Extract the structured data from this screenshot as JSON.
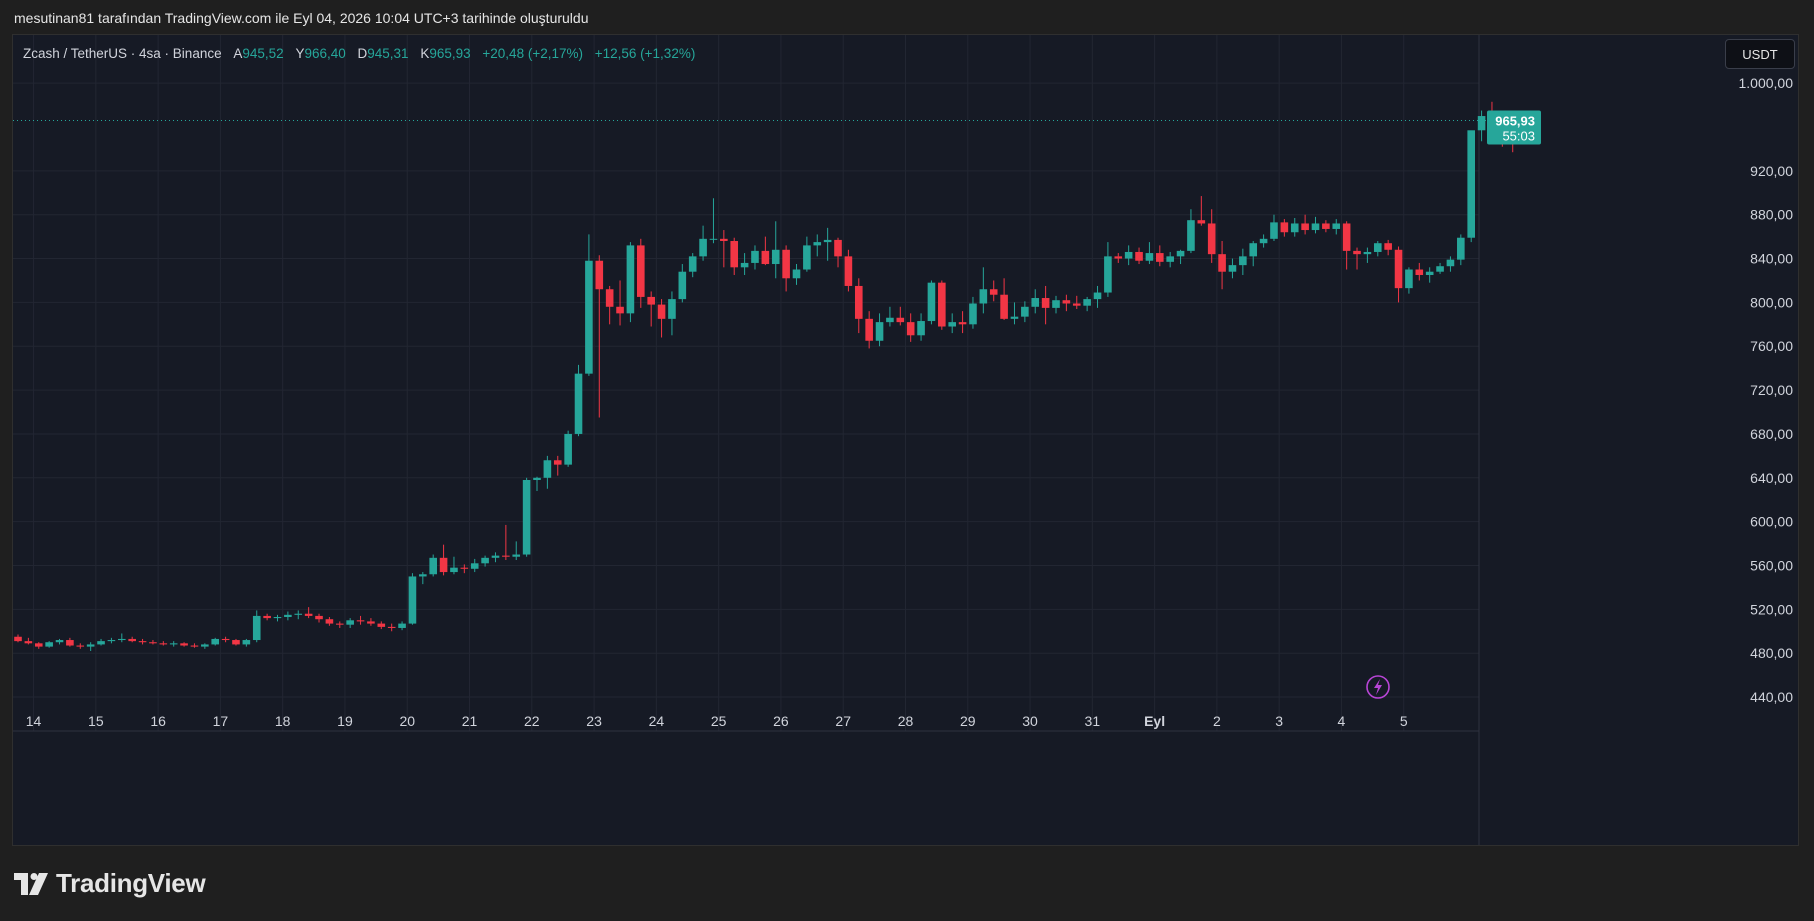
{
  "header": {
    "snapshot_text": "mesutinan81 tarafından TradingView.com ile Eyl 04, 2026 10:04 UTC+3 tarihinde oluşturuldu"
  },
  "legend": {
    "symbol": "Zcash / TetherUS · 4sa · Binance",
    "open_label": "A",
    "open": "945,52",
    "high_label": "Y",
    "high": "966,40",
    "low_label": "D",
    "low": "945,31",
    "close_label": "K",
    "close": "965,93",
    "change": "+20,48 (+2,17%)",
    "change2": "+12,56 (+1,32%)"
  },
  "currency_button": "USDT",
  "price_badge": {
    "price": "965,93",
    "countdown": "55:03"
  },
  "footer": {
    "brand": "TradingView"
  },
  "colors": {
    "up": "#26a69a",
    "down": "#f23645",
    "background": "#161a25",
    "grid": "#222632",
    "axis_text": "#d1d4dc",
    "lightning": "#b845d6"
  },
  "icons": {
    "lightning": "lightning-icon",
    "logo": "tradingview-logo-icon"
  },
  "chart_data": {
    "type": "candlestick",
    "y_ticks": [
      {
        "value": 1000,
        "label": "1.000,00"
      },
      {
        "value": 920,
        "label": "920,00"
      },
      {
        "value": 880,
        "label": "880,00"
      },
      {
        "value": 840,
        "label": "840,00"
      },
      {
        "value": 800,
        "label": "800,00"
      },
      {
        "value": 760,
        "label": "760,00"
      },
      {
        "value": 720,
        "label": "720,00"
      },
      {
        "value": 680,
        "label": "680,00"
      },
      {
        "value": 640,
        "label": "640,00"
      },
      {
        "value": 600,
        "label": "600,00"
      },
      {
        "value": 560,
        "label": "560,00"
      },
      {
        "value": 520,
        "label": "520,00"
      },
      {
        "value": 480,
        "label": "480,00"
      },
      {
        "value": 440,
        "label": "440,00"
      }
    ],
    "x_ticks": [
      {
        "label": "14",
        "pos": 1.5
      },
      {
        "label": "15",
        "pos": 7.5
      },
      {
        "label": "16",
        "pos": 13.5
      },
      {
        "label": "17",
        "pos": 19.5
      },
      {
        "label": "18",
        "pos": 25.5
      },
      {
        "label": "19",
        "pos": 31.5
      },
      {
        "label": "20",
        "pos": 37.5
      },
      {
        "label": "21",
        "pos": 43.5
      },
      {
        "label": "22",
        "pos": 49.5
      },
      {
        "label": "23",
        "pos": 55.5
      },
      {
        "label": "24",
        "pos": 61.5
      },
      {
        "label": "25",
        "pos": 67.5
      },
      {
        "label": "26",
        "pos": 73.5
      },
      {
        "label": "27",
        "pos": 79.5
      },
      {
        "label": "28",
        "pos": 85.5
      },
      {
        "label": "29",
        "pos": 91.5
      },
      {
        "label": "30",
        "pos": 97.5
      },
      {
        "label": "31",
        "pos": 103.5
      },
      {
        "label": "Eyl",
        "pos": 109.5,
        "bold": true
      },
      {
        "label": "2",
        "pos": 115.5
      },
      {
        "label": "3",
        "pos": 121.5
      },
      {
        "label": "4",
        "pos": 127.5
      },
      {
        "label": "5",
        "pos": 133.5
      }
    ],
    "ylim": [
      430,
      1012
    ],
    "last_price": 965.93,
    "ohlc": [
      [
        495,
        497,
        490,
        491
      ],
      [
        491,
        494,
        488,
        489
      ],
      [
        489,
        490,
        484,
        486
      ],
      [
        486,
        491,
        485,
        490
      ],
      [
        490,
        493,
        488,
        492
      ],
      [
        492,
        494,
        486,
        487
      ],
      [
        487,
        489,
        484,
        486
      ],
      [
        486,
        490,
        482,
        488
      ],
      [
        488,
        493,
        487,
        491
      ],
      [
        491,
        494,
        489,
        492
      ],
      [
        492,
        498,
        490,
        493
      ],
      [
        493,
        495,
        490,
        491
      ],
      [
        491,
        493,
        488,
        490
      ],
      [
        490,
        492,
        488,
        489
      ],
      [
        489,
        491,
        487,
        488
      ],
      [
        488,
        491,
        486,
        489
      ],
      [
        489,
        490,
        486,
        487
      ],
      [
        487,
        489,
        485,
        486
      ],
      [
        486,
        489,
        484,
        488
      ],
      [
        488,
        494,
        487,
        493
      ],
      [
        493,
        495,
        490,
        492
      ],
      [
        492,
        493,
        487,
        488
      ],
      [
        488,
        493,
        486,
        492
      ],
      [
        492,
        519,
        490,
        514
      ],
      [
        514,
        516,
        510,
        512
      ],
      [
        512,
        515,
        509,
        513
      ],
      [
        513,
        518,
        510,
        515
      ],
      [
        515,
        519,
        511,
        516
      ],
      [
        516,
        522,
        512,
        514
      ],
      [
        514,
        516,
        508,
        511
      ],
      [
        511,
        513,
        505,
        507
      ],
      [
        507,
        509,
        503,
        506
      ],
      [
        506,
        512,
        503,
        510
      ],
      [
        510,
        514,
        506,
        509
      ],
      [
        509,
        512,
        505,
        507
      ],
      [
        507,
        509,
        502,
        504
      ],
      [
        504,
        507,
        500,
        503
      ],
      [
        503,
        509,
        501,
        507
      ],
      [
        507,
        553,
        506,
        550
      ],
      [
        550,
        554,
        543,
        552
      ],
      [
        552,
        570,
        550,
        567
      ],
      [
        567,
        579,
        551,
        554
      ],
      [
        554,
        568,
        552,
        558
      ],
      [
        558,
        561,
        553,
        557
      ],
      [
        557,
        566,
        554,
        562
      ],
      [
        562,
        569,
        559,
        567
      ],
      [
        567,
        572,
        563,
        569
      ],
      [
        569,
        597,
        565,
        568
      ],
      [
        568,
        582,
        565,
        570
      ],
      [
        570,
        640,
        568,
        638
      ],
      [
        638,
        641,
        628,
        640
      ],
      [
        640,
        660,
        630,
        656
      ],
      [
        656,
        660,
        642,
        652
      ],
      [
        652,
        683,
        650,
        680
      ],
      [
        680,
        743,
        678,
        735
      ],
      [
        735,
        862,
        733,
        838
      ],
      [
        838,
        843,
        695,
        812
      ],
      [
        812,
        815,
        780,
        796
      ],
      [
        796,
        820,
        779,
        790
      ],
      [
        790,
        855,
        782,
        852
      ],
      [
        852,
        858,
        795,
        805
      ],
      [
        805,
        810,
        778,
        798
      ],
      [
        798,
        803,
        768,
        785
      ],
      [
        785,
        810,
        770,
        803
      ],
      [
        803,
        835,
        800,
        828
      ],
      [
        828,
        845,
        823,
        842
      ],
      [
        842,
        870,
        838,
        858
      ],
      [
        858,
        895,
        854,
        858
      ],
      [
        858,
        866,
        832,
        856
      ],
      [
        856,
        859,
        825,
        832
      ],
      [
        832,
        845,
        825,
        836
      ],
      [
        836,
        852,
        830,
        847
      ],
      [
        847,
        860,
        834,
        835
      ],
      [
        835,
        874,
        822,
        848
      ],
      [
        848,
        852,
        810,
        822
      ],
      [
        822,
        835,
        816,
        830
      ],
      [
        830,
        860,
        828,
        852
      ],
      [
        852,
        862,
        842,
        855
      ],
      [
        855,
        868,
        838,
        857
      ],
      [
        857,
        859,
        832,
        842
      ],
      [
        842,
        848,
        810,
        815
      ],
      [
        815,
        822,
        772,
        785
      ],
      [
        785,
        792,
        758,
        765
      ],
      [
        765,
        790,
        760,
        782
      ],
      [
        782,
        796,
        778,
        786
      ],
      [
        786,
        796,
        779,
        782
      ],
      [
        782,
        790,
        764,
        770
      ],
      [
        770,
        790,
        765,
        783
      ],
      [
        783,
        820,
        780,
        818
      ],
      [
        818,
        820,
        775,
        778
      ],
      [
        778,
        790,
        772,
        782
      ],
      [
        782,
        792,
        772,
        780
      ],
      [
        780,
        805,
        776,
        799
      ],
      [
        799,
        832,
        790,
        812
      ],
      [
        812,
        820,
        801,
        807
      ],
      [
        807,
        822,
        784,
        785
      ],
      [
        785,
        800,
        780,
        787
      ],
      [
        787,
        801,
        782,
        796
      ],
      [
        796,
        812,
        790,
        804
      ],
      [
        804,
        815,
        780,
        795
      ],
      [
        795,
        806,
        790,
        802
      ],
      [
        802,
        807,
        792,
        799
      ],
      [
        799,
        806,
        794,
        797
      ],
      [
        797,
        805,
        792,
        803
      ],
      [
        803,
        815,
        795,
        809
      ],
      [
        809,
        855,
        805,
        842
      ],
      [
        842,
        845,
        836,
        840
      ],
      [
        840,
        852,
        834,
        846
      ],
      [
        846,
        850,
        835,
        838
      ],
      [
        838,
        855,
        835,
        845
      ],
      [
        845,
        852,
        833,
        837
      ],
      [
        837,
        846,
        832,
        842
      ],
      [
        842,
        848,
        835,
        847
      ],
      [
        847,
        885,
        845,
        875
      ],
      [
        875,
        897,
        870,
        872
      ],
      [
        872,
        885,
        836,
        844
      ],
      [
        844,
        856,
        812,
        828
      ],
      [
        828,
        840,
        822,
        834
      ],
      [
        834,
        849,
        825,
        842
      ],
      [
        842,
        856,
        833,
        854
      ],
      [
        854,
        862,
        850,
        858
      ],
      [
        858,
        880,
        856,
        873
      ],
      [
        873,
        876,
        860,
        864
      ],
      [
        864,
        877,
        860,
        872
      ],
      [
        872,
        880,
        862,
        866
      ],
      [
        866,
        878,
        863,
        872
      ],
      [
        872,
        875,
        864,
        867
      ],
      [
        867,
        876,
        862,
        872
      ],
      [
        872,
        874,
        830,
        847
      ],
      [
        847,
        850,
        830,
        844
      ],
      [
        844,
        850,
        836,
        846
      ],
      [
        846,
        856,
        842,
        854
      ],
      [
        854,
        857,
        843,
        848
      ],
      [
        848,
        851,
        800,
        813
      ],
      [
        813,
        832,
        808,
        830
      ],
      [
        830,
        836,
        820,
        825
      ],
      [
        825,
        832,
        818,
        828
      ],
      [
        828,
        836,
        826,
        833
      ],
      [
        833,
        842,
        828,
        839
      ],
      [
        839,
        862,
        834,
        859
      ],
      [
        859,
        955,
        855,
        957
      ],
      [
        957,
        975,
        947,
        970
      ],
      [
        970,
        983,
        952,
        965
      ],
      [
        965,
        969,
        942,
        951
      ],
      [
        951,
        956,
        937,
        945
      ],
      [
        945,
        966,
        945,
        966
      ]
    ]
  }
}
